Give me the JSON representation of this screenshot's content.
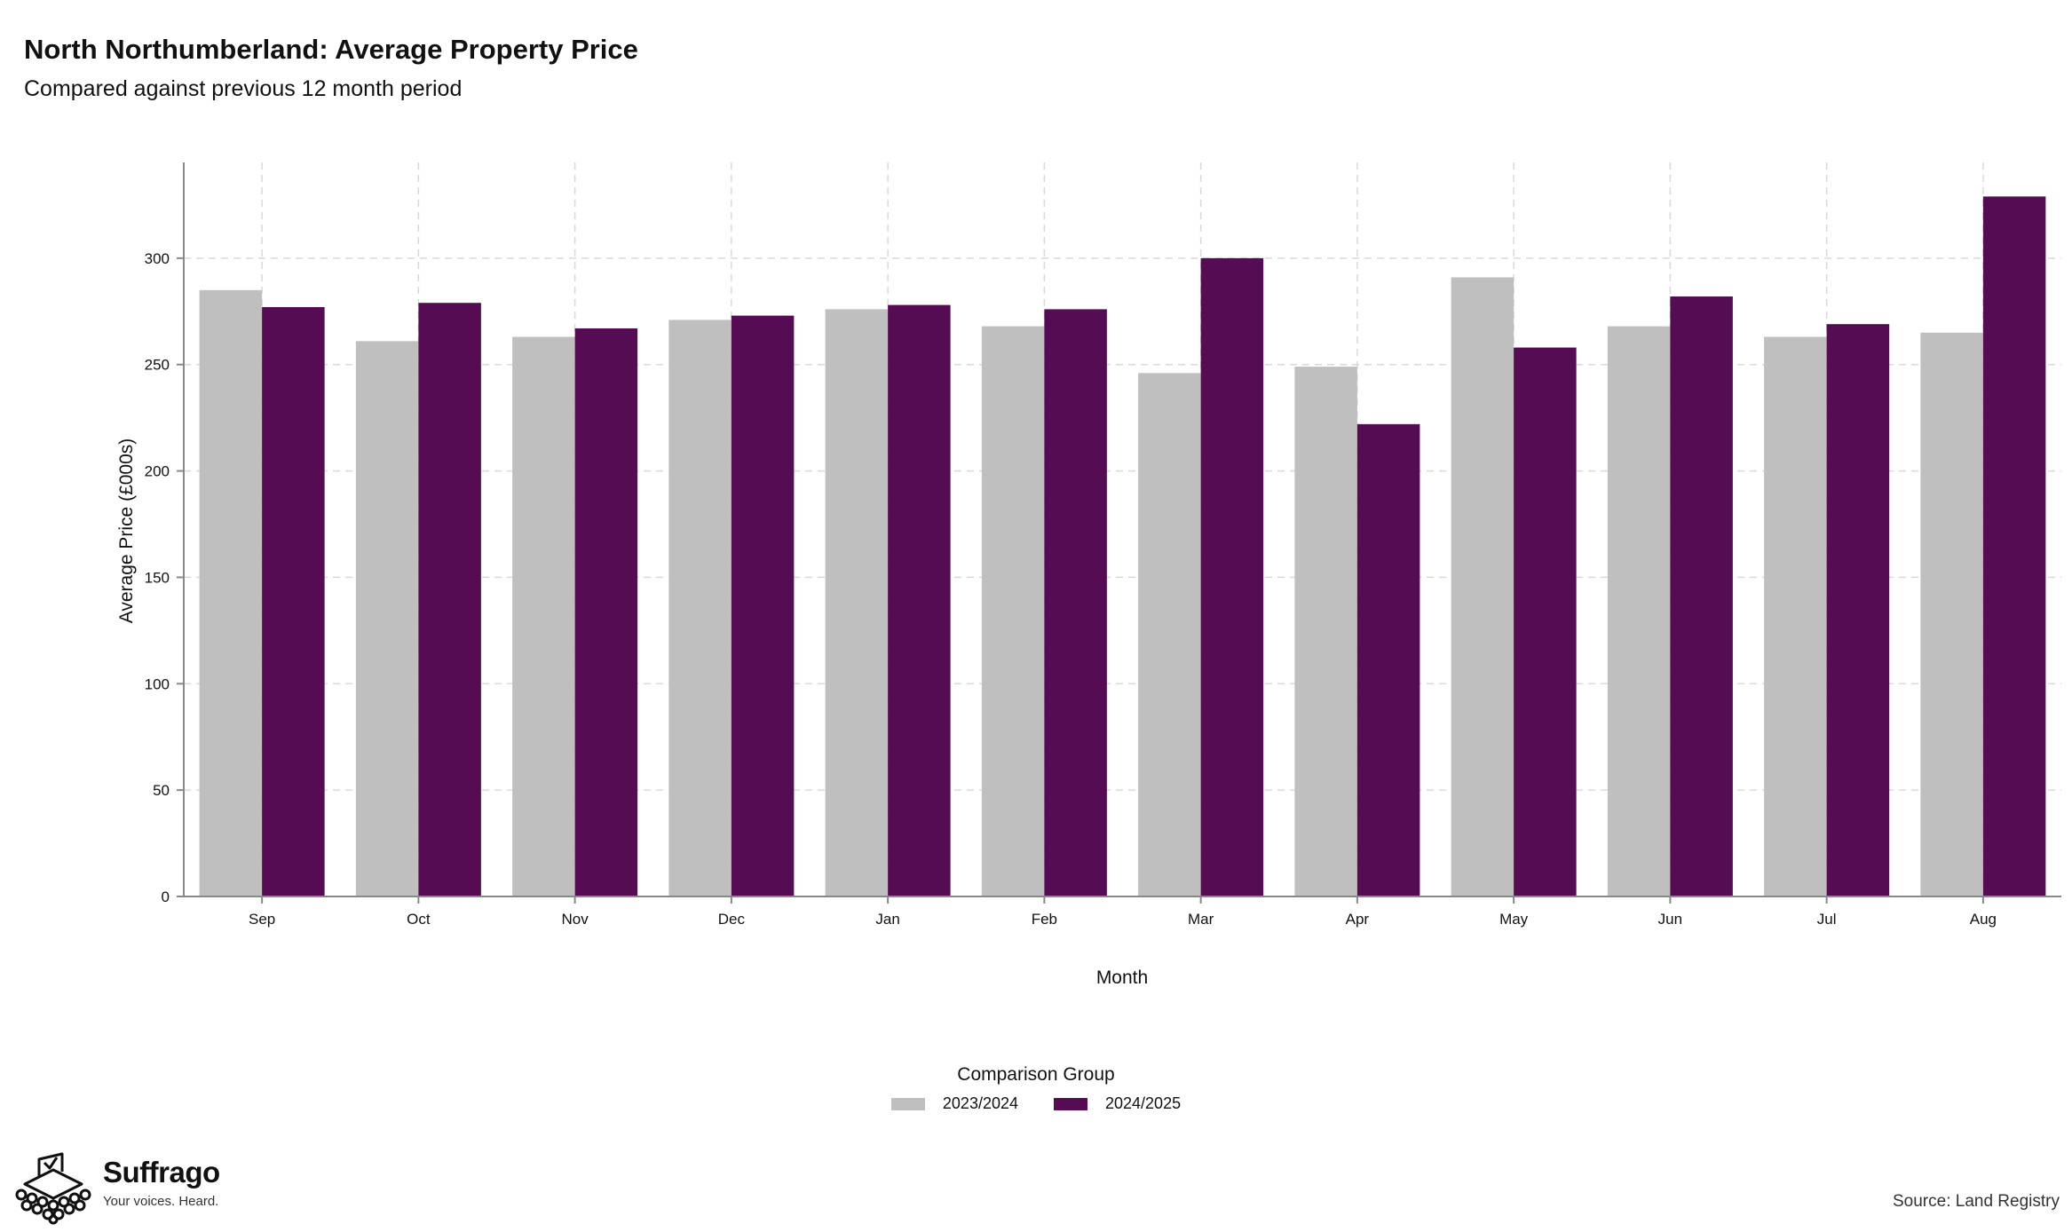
{
  "header": {
    "title": "North Northumberland: Average Property Price",
    "subtitle": "Compared against previous 12 month period"
  },
  "chart_data": {
    "type": "bar",
    "xlabel": "Month",
    "ylabel": "Average Price (£000s)",
    "ylim": [
      0,
      345
    ],
    "yticks": [
      0,
      50,
      100,
      150,
      200,
      250,
      300
    ],
    "grid": true,
    "legend_position": "bottom",
    "legend_title": "Comparison Group",
    "categories": [
      "Sep",
      "Oct",
      "Nov",
      "Dec",
      "Jan",
      "Feb",
      "Mar",
      "Apr",
      "May",
      "Jun",
      "Jul",
      "Aug"
    ],
    "series": [
      {
        "name": "2023/2024",
        "color": "#bfbfbf",
        "values": [
          285,
          261,
          263,
          271,
          276,
          268,
          246,
          249,
          291,
          268,
          263,
          265
        ]
      },
      {
        "name": "2024/2025",
        "color": "#550c52",
        "values": [
          277,
          279,
          267,
          273,
          278,
          276,
          300,
          222,
          258,
          282,
          269,
          329
        ]
      }
    ]
  },
  "footer": {
    "brand": "Suffrago",
    "tagline": "Your voices. Heard.",
    "source": "Source: Land Registry"
  }
}
